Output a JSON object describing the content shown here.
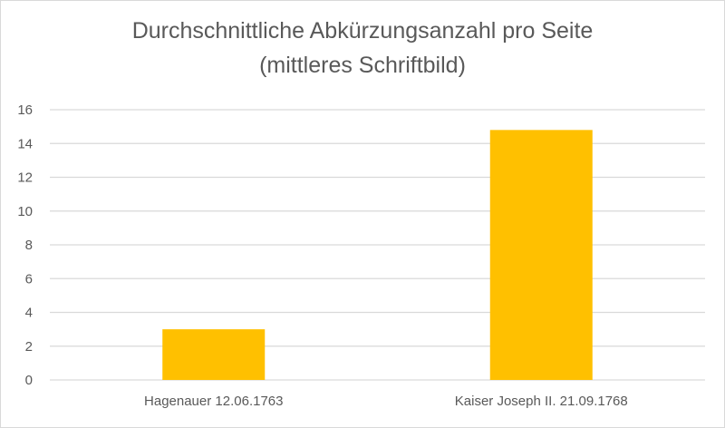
{
  "chart_data": {
    "type": "bar",
    "title": "Durchschnittliche Abkürzungsanzahl pro Seite",
    "subtitle": "(mittleres Schriftbild)",
    "categories": [
      "Hagenauer 12.06.1763",
      "Kaiser Joseph II. 21.09.1768"
    ],
    "values": [
      3.0,
      14.8
    ],
    "ylim": [
      0,
      16
    ],
    "yticks": [
      0,
      2,
      4,
      6,
      8,
      10,
      12,
      14,
      16
    ],
    "xlabel": "",
    "ylabel": "",
    "grid": true,
    "legend": "none",
    "bar_color": "#FFC000"
  }
}
